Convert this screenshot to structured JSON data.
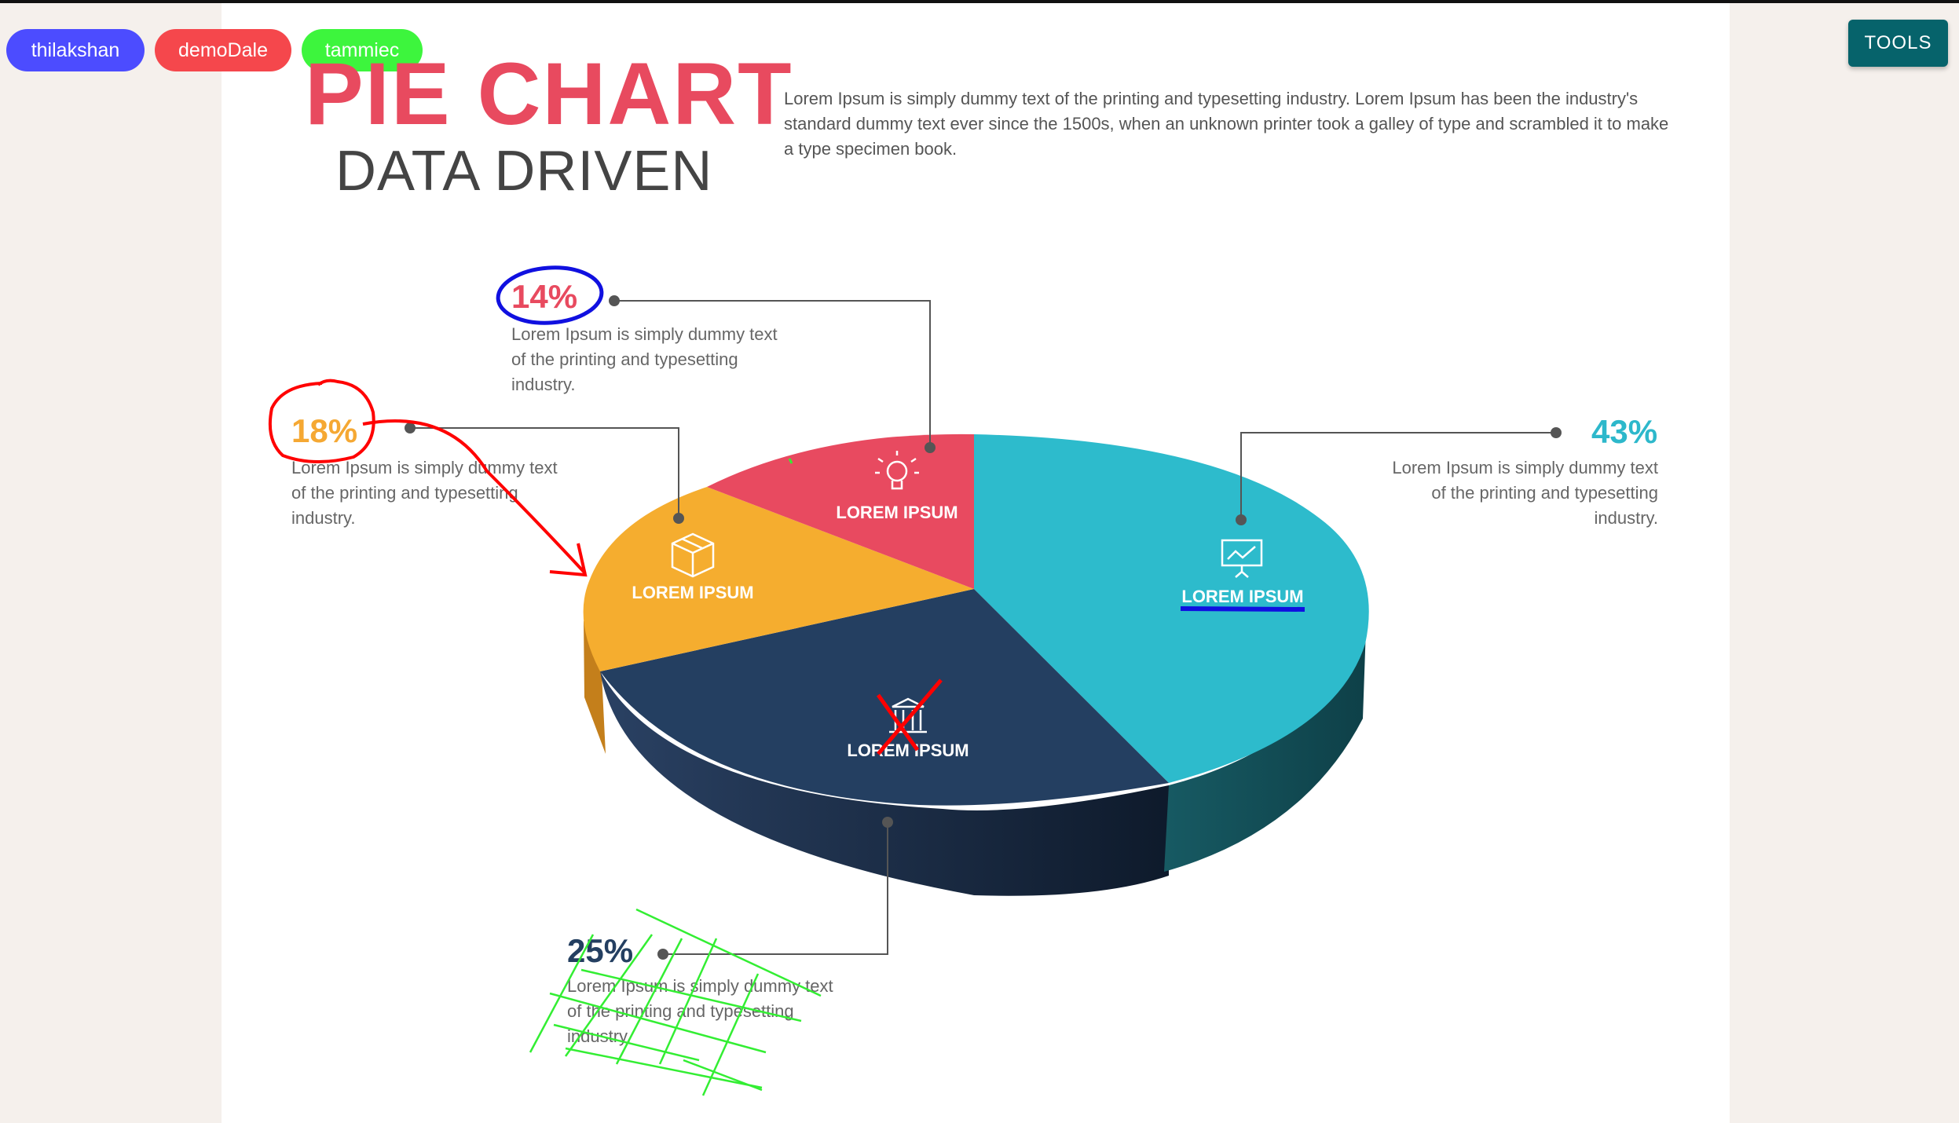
{
  "users": [
    {
      "name": "thilakshan",
      "color": "#4c4cff"
    },
    {
      "name": "demoDale",
      "color": "#f5474c"
    },
    {
      "name": "tammiec",
      "color": "#3df53d"
    }
  ],
  "toolbar": {
    "tools_label": "TOOLS"
  },
  "slide": {
    "title": "PIE CHART",
    "subtitle": "DATA DRIVEN",
    "intro": "Lorem Ipsum is simply dummy text of the printing and typesetting industry. Lorem Ipsum has been the industry's standard dummy text ever since the 1500s, when an unknown printer took a galley of type and scrambled it to make a type specimen book.",
    "callouts": [
      {
        "pct": "14%",
        "text": "Lorem Ipsum is simply dummy text of the printing and typesetting industry.",
        "color": "#e84a5f"
      },
      {
        "pct": "18%",
        "text": "Lorem Ipsum is simply dummy text of the printing and typesetting industry.",
        "color": "#f5a833"
      },
      {
        "pct": "43%",
        "text": "Lorem Ipsum is simply dummy text of the printing and typesetting industry.",
        "color": "#2db8cb"
      },
      {
        "pct": "25%",
        "text": "Lorem Ipsum is simply dummy text of the printing and typesetting industry.",
        "color": "#243f61"
      }
    ],
    "slice_labels": [
      "LOREM IPSUM",
      "LOREM IPSUM",
      "LOREM IPSUM",
      "LOREM IPSUM"
    ]
  },
  "chart_data": {
    "type": "pie",
    "categories": [
      "LOREM IPSUM",
      "LOREM IPSUM",
      "LOREM IPSUM",
      "LOREM IPSUM"
    ],
    "values": [
      43,
      25,
      18,
      14
    ],
    "colors": [
      "#2dbbcc",
      "#243f61",
      "#f5ad2f",
      "#e84a60"
    ],
    "icons": [
      "presentation-board-icon",
      "bank-building-icon",
      "box-package-icon",
      "lightbulb-icon"
    ],
    "title": "PIE CHART"
  },
  "annotations": {
    "colors": {
      "blue": "#1010e0",
      "red": "#ff0000",
      "green": "#33ee33"
    }
  }
}
